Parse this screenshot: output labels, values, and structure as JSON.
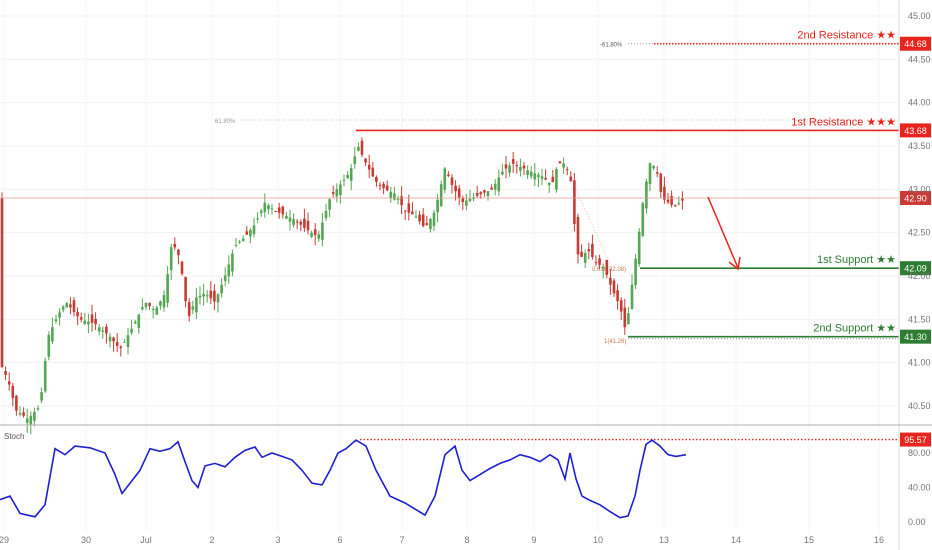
{
  "chart_data": {
    "type": "candlestick",
    "price_axis": {
      "min": 40.25,
      "max": 45.1,
      "ticks": [
        "40.50",
        "41.00",
        "41.50",
        "42.00",
        "42.50",
        "43.00",
        "43.50",
        "44.00",
        "44.50",
        "45.00"
      ]
    },
    "x_axis": {
      "labels": [
        "29",
        "30",
        "Jul",
        "2",
        "3",
        "6",
        "7",
        "8",
        "9",
        "10",
        "13",
        "14",
        "15",
        "16"
      ]
    },
    "levels": [
      {
        "label": "2nd Resistance ★★",
        "value": "44.68",
        "price": 44.68,
        "color": "#e8241c",
        "fib": "-61.80%"
      },
      {
        "label": "1st Resistance ★★★",
        "value": "43.68",
        "price": 43.68,
        "color": "#e8241c",
        "fib": "61.80%"
      },
      {
        "label": "1st Support ★★",
        "value": "42.09",
        "price": 42.09,
        "color": "#2e7d32",
        "fib": "0.618(42.08)"
      },
      {
        "label": "2nd Support ★★",
        "value": "41.30",
        "price": 41.3,
        "color": "#2e7d32",
        "fib": "1(41.26)"
      }
    ],
    "current_price": {
      "value": "42.90",
      "price": 42.9,
      "color": "#e8998d"
    },
    "colors": {
      "up": "#53a653",
      "down": "#c73b34",
      "stoch_line": "#1f1fd0",
      "level_red": "#e8241c",
      "level_green": "#2e7d32"
    },
    "stochastic": {
      "title": "Stoch",
      "max_label": "95.57",
      "ticks": [
        "0.00",
        "40.00",
        "80.00"
      ],
      "min": 0,
      "max": 100
    }
  }
}
